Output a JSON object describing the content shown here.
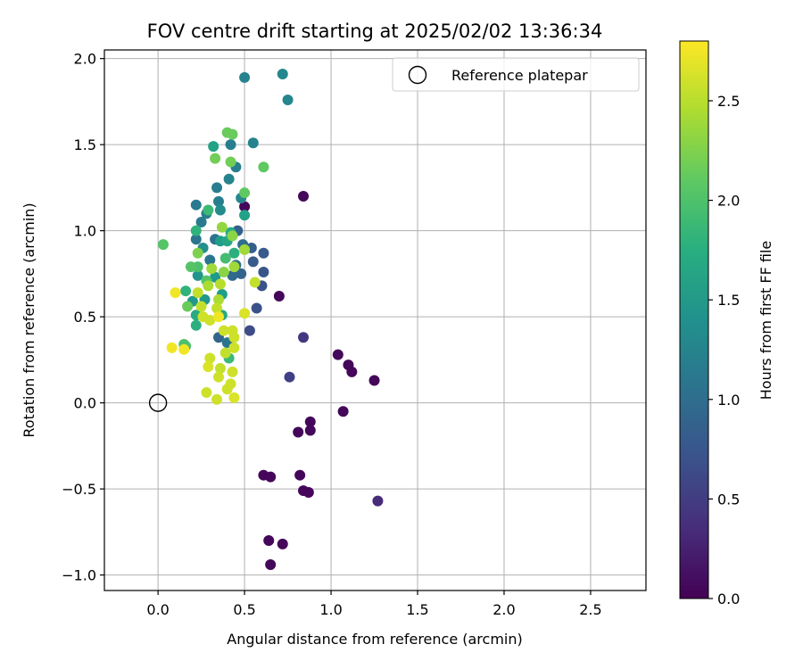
{
  "chart_data": {
    "type": "scatter",
    "title": "FOV centre drift starting at 2025/02/02 13:36:34",
    "xlabel": "Angular distance from reference (arcmin)",
    "ylabel": "Rotation from reference (arcmin)",
    "xlim": [
      -0.31,
      2.82
    ],
    "ylim": [
      -1.09,
      2.05
    ],
    "xticks": [
      0.0,
      0.5,
      1.0,
      1.5,
      2.0,
      2.5
    ],
    "xtick_labels": [
      "0.0",
      "0.5",
      "1.0",
      "1.5",
      "2.0",
      "2.5"
    ],
    "yticks": [
      -1.0,
      -0.5,
      0.0,
      0.5,
      1.0,
      1.5,
      2.0
    ],
    "ytick_labels": [
      "−1.0",
      "−0.5",
      "0.0",
      "0.5",
      "1.0",
      "1.5",
      "2.0"
    ],
    "grid": true,
    "legend": {
      "position": "top-right",
      "entries": [
        {
          "label": "Reference platepar",
          "marker": "open-circle"
        }
      ]
    },
    "reference_point": {
      "x": 0.0,
      "y": 0.0
    },
    "colorbar": {
      "label": "Hours from first FF file",
      "range": [
        0.0,
        2.8
      ],
      "ticks": [
        0.0,
        0.5,
        1.0,
        1.5,
        2.0,
        2.5
      ],
      "tick_labels": [
        "0.0",
        "0.5",
        "1.0",
        "1.5",
        "2.0",
        "2.5"
      ],
      "colormap": "viridis"
    },
    "points": [
      [
        0.5,
        1.14,
        0.05
      ],
      [
        0.84,
        1.2,
        0.05
      ],
      [
        0.7,
        0.62,
        0.05
      ],
      [
        1.04,
        0.28,
        0.05
      ],
      [
        1.1,
        0.22,
        0.05
      ],
      [
        1.12,
        0.18,
        0.05
      ],
      [
        1.25,
        0.13,
        0.05
      ],
      [
        1.07,
        -0.05,
        0.05
      ],
      [
        0.88,
        -0.11,
        0.05
      ],
      [
        0.88,
        -0.16,
        0.05
      ],
      [
        0.81,
        -0.17,
        0.05
      ],
      [
        0.61,
        -0.42,
        0.05
      ],
      [
        0.65,
        -0.43,
        0.05
      ],
      [
        0.82,
        -0.42,
        0.05
      ],
      [
        0.84,
        -0.51,
        0.05
      ],
      [
        0.87,
        -0.52,
        0.05
      ],
      [
        0.64,
        -0.8,
        0.05
      ],
      [
        0.72,
        -0.82,
        0.05
      ],
      [
        0.65,
        -0.94,
        0.05
      ],
      [
        1.27,
        -0.57,
        0.35
      ],
      [
        0.84,
        0.38,
        0.45
      ],
      [
        0.76,
        0.15,
        0.55
      ],
      [
        0.53,
        0.42,
        0.65
      ],
      [
        0.57,
        0.55,
        0.7
      ],
      [
        0.6,
        0.68,
        0.7
      ],
      [
        0.61,
        0.76,
        0.75
      ],
      [
        0.55,
        0.82,
        0.8
      ],
      [
        0.61,
        0.87,
        0.8
      ],
      [
        0.54,
        0.9,
        0.85
      ],
      [
        0.46,
        1.0,
        0.85
      ],
      [
        0.48,
        0.75,
        0.9
      ],
      [
        0.43,
        0.74,
        0.95
      ],
      [
        0.49,
        0.92,
        1.0
      ],
      [
        0.45,
        0.8,
        1.0
      ],
      [
        0.35,
        0.38,
        0.9
      ],
      [
        0.4,
        0.35,
        1.1
      ],
      [
        0.33,
        0.95,
        1.05
      ],
      [
        0.3,
        0.83,
        1.1
      ],
      [
        0.22,
        0.95,
        1.1
      ],
      [
        0.25,
        1.05,
        1.15
      ],
      [
        0.28,
        1.1,
        1.2
      ],
      [
        0.22,
        1.15,
        1.15
      ],
      [
        0.35,
        1.17,
        1.2
      ],
      [
        0.34,
        1.25,
        1.2
      ],
      [
        0.41,
        1.3,
        1.25
      ],
      [
        0.45,
        1.37,
        1.2
      ],
      [
        0.42,
        1.5,
        1.2
      ],
      [
        0.55,
        1.51,
        1.25
      ],
      [
        0.48,
        1.19,
        1.3
      ],
      [
        0.36,
        1.12,
        1.35
      ],
      [
        0.5,
        1.89,
        1.25
      ],
      [
        0.72,
        1.91,
        1.3
      ],
      [
        0.75,
        1.76,
        1.3
      ],
      [
        0.26,
        0.9,
        1.4
      ],
      [
        0.23,
        0.74,
        1.45
      ],
      [
        0.33,
        0.73,
        1.5
      ],
      [
        0.27,
        0.6,
        1.5
      ],
      [
        0.37,
        0.63,
        1.55
      ],
      [
        0.2,
        0.59,
        1.5
      ],
      [
        0.32,
        1.49,
        1.6
      ],
      [
        0.5,
        1.09,
        1.6
      ],
      [
        0.36,
        0.94,
        1.55
      ],
      [
        0.4,
        0.94,
        1.65
      ],
      [
        0.42,
        0.99,
        1.7
      ],
      [
        0.44,
        0.87,
        1.75
      ],
      [
        0.22,
        0.51,
        1.7
      ],
      [
        0.22,
        0.45,
        1.75
      ],
      [
        0.37,
        0.51,
        1.7
      ],
      [
        0.16,
        0.65,
        1.8
      ],
      [
        0.22,
        1.0,
        1.8
      ],
      [
        0.29,
        1.12,
        1.9
      ],
      [
        0.39,
        0.84,
        1.95
      ],
      [
        0.41,
        0.26,
        1.9
      ],
      [
        0.15,
        0.34,
        2.0
      ],
      [
        0.16,
        0.33,
        2.0
      ],
      [
        0.23,
        0.79,
        2.0
      ],
      [
        0.19,
        0.79,
        2.05
      ],
      [
        0.03,
        0.92,
        2.05
      ],
      [
        0.28,
        0.71,
        2.05
      ],
      [
        0.5,
        1.22,
        2.1
      ],
      [
        0.61,
        1.37,
        2.1
      ],
      [
        0.4,
        1.57,
        2.15
      ],
      [
        0.43,
        1.56,
        2.15
      ],
      [
        0.33,
        1.42,
        2.2
      ],
      [
        0.42,
        1.4,
        2.2
      ],
      [
        0.17,
        0.56,
        2.15
      ],
      [
        0.23,
        0.87,
        2.25
      ],
      [
        0.43,
        0.97,
        2.3
      ],
      [
        0.38,
        0.76,
        2.3
      ],
      [
        0.37,
        1.02,
        2.35
      ],
      [
        0.5,
        0.89,
        2.4
      ],
      [
        0.44,
        0.79,
        2.4
      ],
      [
        0.31,
        0.78,
        2.4
      ],
      [
        0.29,
        0.68,
        2.45
      ],
      [
        0.35,
        0.6,
        2.45
      ],
      [
        0.36,
        0.69,
        2.5
      ],
      [
        0.56,
        0.7,
        2.55
      ],
      [
        0.23,
        0.64,
        2.55
      ],
      [
        0.25,
        0.56,
        2.55
      ],
      [
        0.26,
        0.5,
        2.6
      ],
      [
        0.34,
        0.55,
        2.55
      ],
      [
        0.3,
        0.48,
        2.6
      ],
      [
        0.38,
        0.42,
        2.6
      ],
      [
        0.43,
        0.42,
        2.6
      ],
      [
        0.44,
        0.38,
        2.6
      ],
      [
        0.44,
        0.32,
        2.6
      ],
      [
        0.39,
        0.29,
        2.55
      ],
      [
        0.36,
        0.2,
        2.55
      ],
      [
        0.3,
        0.26,
        2.6
      ],
      [
        0.29,
        0.21,
        2.65
      ],
      [
        0.43,
        0.18,
        2.6
      ],
      [
        0.35,
        0.15,
        2.6
      ],
      [
        0.42,
        0.11,
        2.6
      ],
      [
        0.4,
        0.08,
        2.6
      ],
      [
        0.28,
        0.06,
        2.6
      ],
      [
        0.34,
        0.02,
        2.6
      ],
      [
        0.44,
        0.03,
        2.65
      ],
      [
        0.5,
        0.52,
        2.65
      ],
      [
        0.35,
        0.5,
        2.75
      ],
      [
        0.08,
        0.32,
        2.75
      ],
      [
        0.15,
        0.31,
        2.75
      ],
      [
        0.1,
        0.64,
        2.75
      ]
    ]
  }
}
